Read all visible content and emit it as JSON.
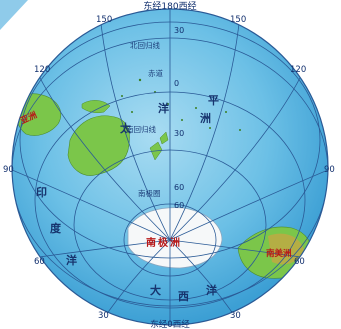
{
  "title_top": "东经180西经",
  "title_bottom": "东经0西经",
  "meridian_labels": {
    "top_left_150": "150",
    "top_right_150": "150",
    "left_120": "120",
    "right_120": "120",
    "left_90": "90",
    "right_90": "90",
    "left_60": "60",
    "right_60": "60",
    "bottom_left_30": "30",
    "bottom_right_30": "30"
  },
  "latitude_labels": {
    "n30": "30",
    "eq0": "0",
    "s30": "30",
    "s60": "60",
    "s60_inner": "60"
  },
  "line_labels": {
    "tropic_cancer": "北回归线",
    "equator": "赤道",
    "tropic_capricorn": "南回归线",
    "antarctic_circle": "南极圈"
  },
  "ocean_labels": {
    "pacific": [
      "太",
      "平",
      "洋",
      "洲"
    ],
    "indian": [
      "印",
      "度",
      "洋"
    ],
    "atlantic": [
      "大",
      "西",
      "洋"
    ]
  },
  "continent_labels": {
    "antarctica": "南极洲",
    "south_america": "南美洲",
    "asia": "亚洲"
  },
  "colors": {
    "ocean": "#5bb6e0",
    "ocean_highlight": "#a9dcf2",
    "land": "#7bc64a",
    "antarctica": "#f6f8f9",
    "grid": "#2a5a96",
    "text": "#12306e",
    "continent_text": "#b81818"
  }
}
